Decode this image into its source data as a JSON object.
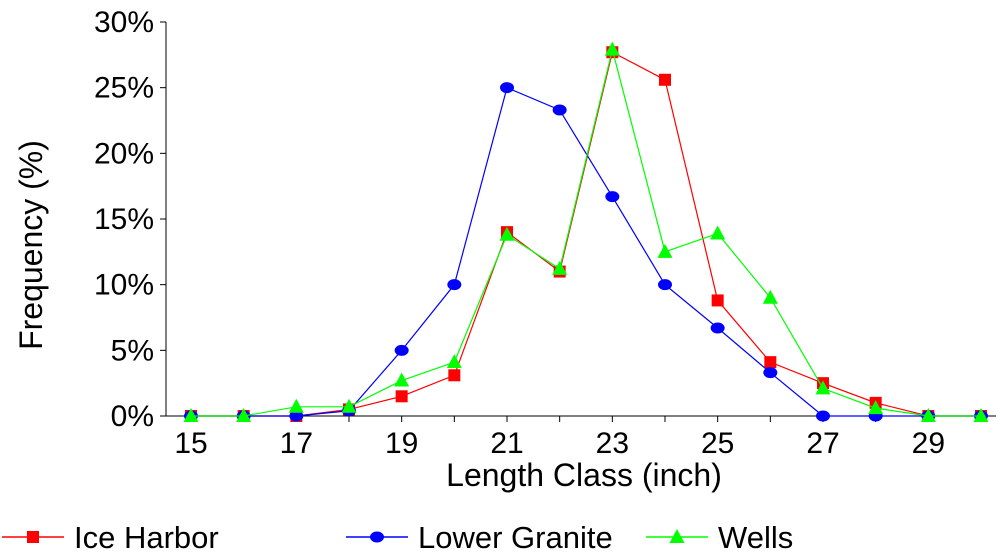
{
  "chart_data": {
    "type": "line",
    "title": "",
    "xlabel": "Length Class (inch)",
    "ylabel": "Frequency (%)",
    "xlim": [
      15,
      30
    ],
    "ylim": [
      0,
      30
    ],
    "x_ticks": [
      15,
      17,
      19,
      21,
      23,
      25,
      27,
      29
    ],
    "y_ticks": [
      "0%",
      "5%",
      "10%",
      "15%",
      "20%",
      "25%",
      "30%"
    ],
    "y_tick_values": [
      0,
      5,
      10,
      15,
      20,
      25,
      30
    ],
    "grid": false,
    "legend_position": "bottom",
    "x": [
      15,
      16,
      17,
      18,
      19,
      20,
      21,
      22,
      23,
      24,
      25,
      26,
      27,
      28,
      29,
      30
    ],
    "series": [
      {
        "name": "Ice Harbor",
        "color": "#ff0000",
        "marker": "square",
        "values": [
          0,
          0,
          0,
          0.5,
          1.5,
          3.1,
          14.0,
          11.0,
          27.7,
          25.6,
          8.8,
          4.1,
          2.5,
          1.0,
          0,
          0
        ]
      },
      {
        "name": "Lower Granite",
        "color": "#0000ff",
        "marker": "circle",
        "values": [
          0,
          0,
          0,
          0.4,
          5.0,
          10.0,
          25.0,
          23.3,
          16.7,
          10.0,
          6.7,
          3.3,
          0,
          0,
          0,
          0
        ]
      },
      {
        "name": "Wells",
        "color": "#00ff00",
        "marker": "triangle",
        "values": [
          0,
          0,
          0.7,
          0.7,
          2.7,
          4.1,
          13.8,
          11.2,
          27.9,
          12.5,
          13.9,
          9.0,
          2.1,
          0.6,
          0,
          0
        ]
      }
    ]
  }
}
